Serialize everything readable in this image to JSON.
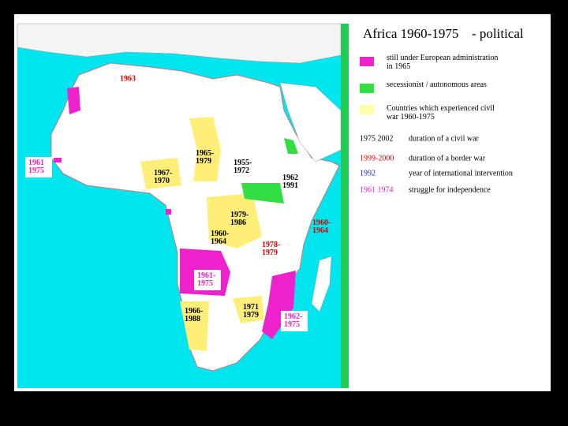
{
  "title": "Africa 1960-1975",
  "subtitle": "- political",
  "legend": [
    {
      "key": null,
      "text": "still under European administration in 1965"
    },
    {
      "key": null,
      "text": "secessionist / autonomous areas"
    },
    {
      "key": null,
      "text": "Countries which experienced civil war 1960-1975"
    },
    {
      "key": "1975 2002",
      "text": "duration of a civil war"
    },
    {
      "key": "1999-2000",
      "text": "duration of a border war"
    },
    {
      "key": "1992",
      "text": "year of international intervention"
    },
    {
      "key": "1961 1974",
      "text": "struggle for independence"
    }
  ],
  "map_labels": [
    "1963",
    "1961 1975",
    "1965-1979",
    "1955-1972",
    "1967-1970",
    "1962 1991",
    "1979-1986",
    "1960-1964",
    "1960-1964",
    "1978-1979",
    "1961-1975",
    "1966-1988",
    "1971 1979",
    "1962-1975"
  ]
}
